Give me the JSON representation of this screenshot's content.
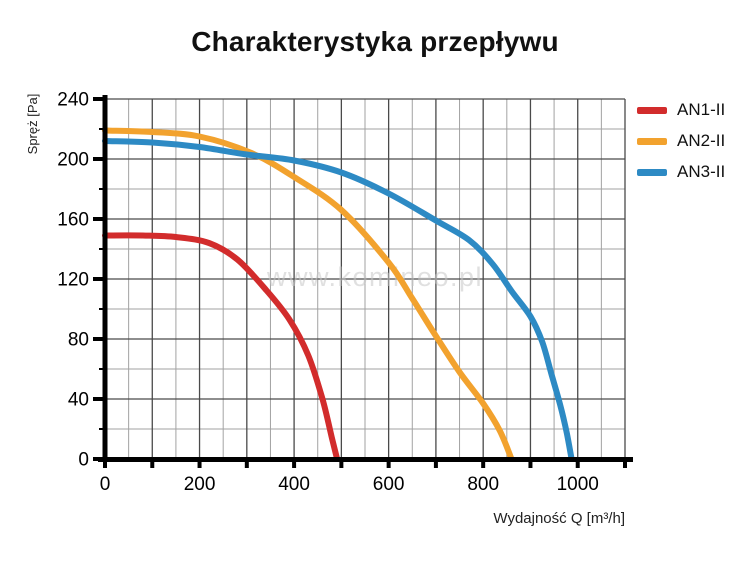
{
  "page": {
    "background": "#ffffff"
  },
  "title": "Charakterystyka przepływu",
  "watermark": "www.komineo.pl",
  "chart_data": {
    "type": "line",
    "title": "Charakterystyka przepływu",
    "xlabel": "Wydajność Q [m³/h]",
    "ylabel": "Spręż [Pa]",
    "xlim": [
      0,
      1100
    ],
    "ylim": [
      0,
      240
    ],
    "x_ticks_labeled": [
      0,
      200,
      400,
      600,
      800,
      1000
    ],
    "x_major": 100,
    "x_minor": 50,
    "y_ticks_labeled": [
      0,
      40,
      80,
      120,
      160,
      200,
      240
    ],
    "y_major": 40,
    "y_minor": 20,
    "grid": true,
    "legend_position": "right",
    "axis_color": "#000000",
    "grid_major_color": "#4a4a4a",
    "grid_minor_color": "#a2a2a2",
    "tick_label_color": "#000000",
    "watermark_color": "#c6c6c6",
    "series": [
      {
        "name": "AN1-II",
        "color": "#d22c2c",
        "points": [
          [
            0,
            149
          ],
          [
            80,
            149
          ],
          [
            150,
            148
          ],
          [
            220,
            144
          ],
          [
            280,
            133
          ],
          [
            340,
            113
          ],
          [
            390,
            93
          ],
          [
            430,
            69
          ],
          [
            460,
            40
          ],
          [
            480,
            14
          ],
          [
            491,
            0
          ]
        ]
      },
      {
        "name": "AN2-II",
        "color": "#f2a22e",
        "points": [
          [
            0,
            219
          ],
          [
            100,
            218
          ],
          [
            200,
            215
          ],
          [
            310,
            204
          ],
          [
            400,
            188
          ],
          [
            500,
            166
          ],
          [
            600,
            131
          ],
          [
            650,
            107
          ],
          [
            700,
            82
          ],
          [
            750,
            58
          ],
          [
            800,
            37
          ],
          [
            835,
            19
          ],
          [
            860,
            0
          ]
        ]
      },
      {
        "name": "AN3-II",
        "color": "#2d8ac4",
        "points": [
          [
            0,
            212
          ],
          [
            100,
            211
          ],
          [
            200,
            208
          ],
          [
            300,
            203
          ],
          [
            400,
            199
          ],
          [
            500,
            191
          ],
          [
            600,
            177
          ],
          [
            700,
            159
          ],
          [
            770,
            146
          ],
          [
            820,
            130
          ],
          [
            860,
            112
          ],
          [
            900,
            95
          ],
          [
            925,
            78
          ],
          [
            945,
            56
          ],
          [
            963,
            36
          ],
          [
            977,
            17
          ],
          [
            987,
            0
          ]
        ]
      }
    ]
  }
}
